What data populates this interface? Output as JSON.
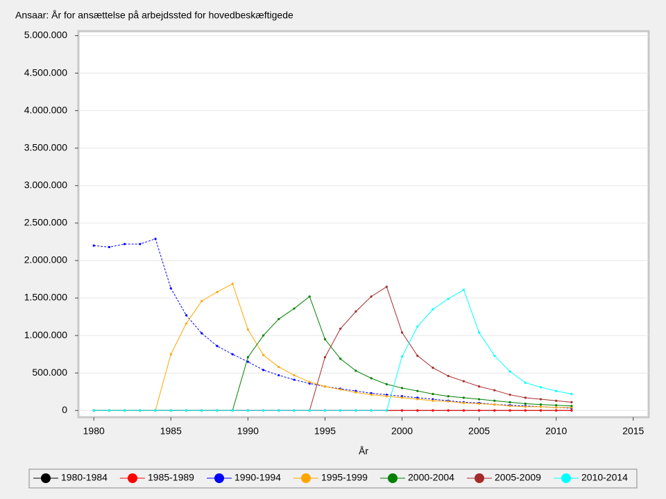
{
  "chart_data": {
    "type": "line",
    "title": "Ansaar: År for ansættelse på arbejdssted for hovedbeskæftigede",
    "x_label": "År",
    "x": [
      1980,
      1981,
      1982,
      1983,
      1984,
      1985,
      1986,
      1987,
      1988,
      1989,
      1990,
      1991,
      1992,
      1993,
      1994,
      1995,
      1996,
      1997,
      1998,
      1999,
      2000,
      2001,
      2002,
      2003,
      2004,
      2005,
      2006,
      2007,
      2008,
      2009,
      2010,
      2011
    ],
    "xlim": [
      1979,
      2016
    ],
    "xticks": [
      1980,
      1985,
      1990,
      1995,
      2000,
      2005,
      2010,
      2015
    ],
    "ylim": [
      -90000,
      5060000
    ],
    "yticks": [
      0,
      {
        "value": 500000,
        "label": "500.000"
      },
      {
        "value": 1000000,
        "label": "1.000.000"
      },
      {
        "value": 1500000,
        "label": "1.500.000"
      },
      {
        "value": 2000000,
        "label": "2.000.000"
      },
      {
        "value": 2500000,
        "label": "2.500.000"
      },
      {
        "value": 3000000,
        "label": "3.000.000"
      },
      {
        "value": 3500000,
        "label": "3.500.000"
      },
      {
        "value": 4000000,
        "label": "4.000.000"
      },
      {
        "value": 4500000,
        "label": "4.500.000"
      },
      {
        "value": 5000000,
        "label": "5.000.000"
      }
    ],
    "grid": true,
    "legend": "bottom",
    "series": [
      {
        "name": "1980-1984",
        "color": "#000000",
        "values": [
          0,
          0,
          0,
          0,
          0,
          0,
          0,
          0,
          0,
          0,
          0,
          0,
          0,
          0,
          0,
          0,
          0,
          0,
          0,
          0,
          0,
          0,
          0,
          0,
          0,
          0,
          0,
          0,
          0,
          0,
          0,
          0
        ]
      },
      {
        "name": "1985-1989",
        "color": "#ff0000",
        "values": [
          0,
          0,
          0,
          0,
          0,
          0,
          0,
          0,
          0,
          0,
          0,
          0,
          0,
          0,
          0,
          0,
          0,
          0,
          0,
          0,
          0,
          0,
          0,
          0,
          0,
          0,
          0,
          0,
          0,
          0,
          0,
          0
        ]
      },
      {
        "name": "1990-1994",
        "color": "#0000ff",
        "values": [
          2200000,
          2180000,
          2220000,
          2220000,
          2290000,
          1630000,
          1270000,
          1030000,
          860000,
          750000,
          650000,
          540000,
          470000,
          410000,
          360000,
          320000,
          290000,
          260000,
          230000,
          210000,
          190000,
          170000,
          150000,
          130000,
          110000,
          100000,
          80000,
          70000,
          60000,
          50000,
          40000,
          30000
        ]
      },
      {
        "name": "1995-1999",
        "color": "#ffa500",
        "values": [
          0,
          0,
          0,
          0,
          0,
          750000,
          1160000,
          1460000,
          1580000,
          1690000,
          1080000,
          740000,
          580000,
          470000,
          380000,
          320000,
          280000,
          240000,
          210000,
          190000,
          170000,
          150000,
          130000,
          120000,
          100000,
          90000,
          80000,
          60000,
          50000,
          50000,
          40000,
          40000
        ]
      },
      {
        "name": "2000-2004",
        "color": "#008000",
        "values": [
          0,
          0,
          0,
          0,
          0,
          0,
          0,
          0,
          0,
          0,
          710000,
          1000000,
          1220000,
          1360000,
          1520000,
          950000,
          690000,
          530000,
          430000,
          350000,
          300000,
          260000,
          220000,
          190000,
          170000,
          150000,
          130000,
          110000,
          90000,
          80000,
          70000,
          60000
        ]
      },
      {
        "name": "2005-2009",
        "color": "#a52a2a",
        "values": [
          0,
          0,
          0,
          0,
          0,
          0,
          0,
          0,
          0,
          0,
          0,
          0,
          0,
          0,
          0,
          710000,
          1090000,
          1320000,
          1520000,
          1650000,
          1040000,
          730000,
          570000,
          460000,
          390000,
          320000,
          270000,
          210000,
          170000,
          150000,
          130000,
          110000
        ]
      },
      {
        "name": "2010-2014",
        "color": "#00ffff",
        "values": [
          0,
          0,
          0,
          0,
          0,
          0,
          0,
          0,
          0,
          0,
          0,
          0,
          0,
          0,
          0,
          0,
          0,
          0,
          0,
          0,
          720000,
          1120000,
          1350000,
          1490000,
          1610000,
          1040000,
          730000,
          520000,
          370000,
          310000,
          260000,
          220000
        ]
      }
    ]
  }
}
